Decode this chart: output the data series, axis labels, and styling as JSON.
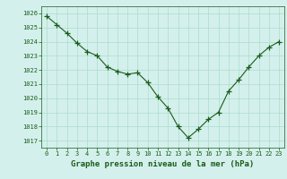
{
  "x": [
    0,
    1,
    2,
    3,
    4,
    5,
    6,
    7,
    8,
    9,
    10,
    11,
    12,
    13,
    14,
    15,
    16,
    17,
    18,
    19,
    20,
    21,
    22,
    23
  ],
  "y": [
    1025.8,
    1025.2,
    1024.6,
    1023.9,
    1023.3,
    1023.0,
    1022.2,
    1021.9,
    1021.7,
    1021.8,
    1021.1,
    1020.1,
    1019.3,
    1018.0,
    1017.2,
    1017.8,
    1018.5,
    1019.0,
    1020.5,
    1021.3,
    1022.2,
    1023.0,
    1023.6,
    1024.0
  ],
  "ylim": [
    1016.5,
    1026.5
  ],
  "yticks": [
    1017,
    1018,
    1019,
    1020,
    1021,
    1022,
    1023,
    1024,
    1025,
    1026
  ],
  "xticks": [
    0,
    1,
    2,
    3,
    4,
    5,
    6,
    7,
    8,
    9,
    10,
    11,
    12,
    13,
    14,
    15,
    16,
    17,
    18,
    19,
    20,
    21,
    22,
    23
  ],
  "xlabel": "Graphe pression niveau de la mer (hPa)",
  "line_color": "#1a5c1a",
  "marker": "+",
  "marker_size": 4,
  "bg_color": "#d4f0ec",
  "grid_color": "#aaddcc",
  "tick_fontsize": 5,
  "xlabel_fontsize": 6.5
}
